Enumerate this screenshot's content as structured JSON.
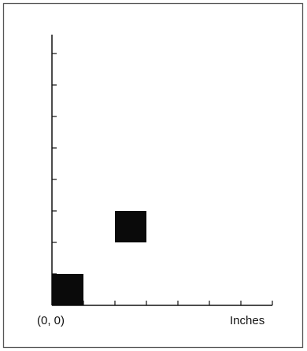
{
  "figure": {
    "origin_label": "(0, 0)",
    "x_unit_label": "Inches"
  },
  "grid": {
    "x_ticks": 7,
    "y_ticks": 8,
    "ink_color": "#0a0a0a",
    "axis_color": "#111111",
    "border_color": "#555555"
  },
  "squares": [
    {
      "name": "square-at-origin",
      "x": 0,
      "y": 0,
      "size": 1
    },
    {
      "name": "square-at-2-2",
      "x": 2,
      "y": 2,
      "size": 1
    }
  ]
}
